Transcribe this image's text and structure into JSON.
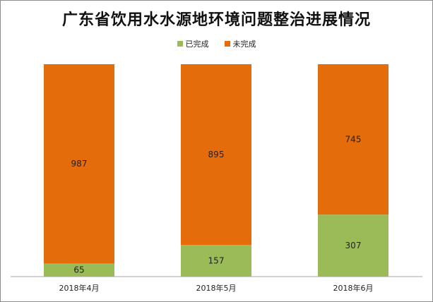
{
  "chart_data": {
    "type": "bar",
    "stacked": true,
    "title": "广东省饮用水水源地环境问题整治进展情况",
    "categories": [
      "2018年4月",
      "2018年5月",
      "2018年6月"
    ],
    "series": [
      {
        "name": "已完成",
        "values": [
          65,
          157,
          307
        ],
        "color": "#9bbb59"
      },
      {
        "name": "未完成",
        "values": [
          987,
          895,
          745
        ],
        "color": "#e46c0a"
      }
    ],
    "legend_position": "top-center",
    "grid": false
  }
}
